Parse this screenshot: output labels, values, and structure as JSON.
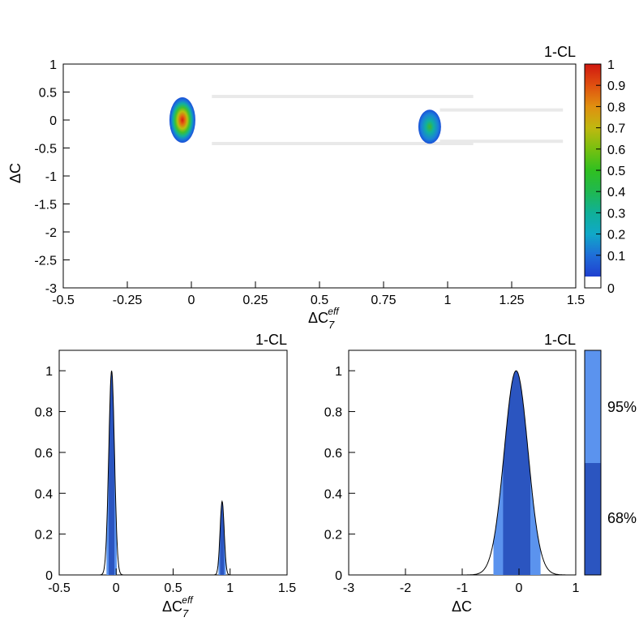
{
  "chart_data": [
    {
      "type": "heatmap",
      "title": "1-CL",
      "xlabel": "ΔC7eff",
      "xlabel_base": "ΔC",
      "xlabel_sub": "7",
      "xlabel_sup": "eff",
      "ylabel": "ΔC",
      "xlim": [
        -0.5,
        1.5
      ],
      "ylim": [
        -3,
        1
      ],
      "x_ticks": [
        "-0.5",
        "-0.25",
        "0",
        "0.25",
        "0.5",
        "0.75",
        "1",
        "1.25",
        "1.5"
      ],
      "y_ticks": [
        "1",
        "0.5",
        "0",
        "-0.5",
        "-1",
        "-1.5",
        "-2",
        "-2.5",
        "-3"
      ],
      "colorbar": {
        "range": [
          0,
          1
        ],
        "ticks": [
          "1",
          "0.9",
          "0.8",
          "0.7",
          "0.6",
          "0.5",
          "0.4",
          "0.3",
          "0.2",
          "0.1",
          "0"
        ]
      },
      "peaks": [
        {
          "x": -0.035,
          "y": 0.0,
          "max": 1.0
        },
        {
          "x": 0.93,
          "y": -0.12,
          "max": 0.36
        }
      ]
    },
    {
      "type": "area",
      "title": "1-CL",
      "xlabel": "ΔC7eff",
      "xlabel_base": "ΔC",
      "xlabel_sub": "7",
      "xlabel_sup": "eff",
      "xlim": [
        -0.5,
        1.5
      ],
      "ylim": [
        0,
        1.1
      ],
      "x_ticks": [
        "-0.5",
        "0",
        "0.5",
        "1",
        "1.5"
      ],
      "y_ticks": [
        "1",
        "0.8",
        "0.6",
        "0.4",
        "0.2",
        "0"
      ],
      "peaks": [
        {
          "center": -0.04,
          "height": 1.0,
          "width": 0.025
        },
        {
          "center": 0.93,
          "height": 0.36,
          "width": 0.018
        }
      ]
    },
    {
      "type": "area",
      "title": "1-CL",
      "xlabel": "ΔC",
      "xlim": [
        -3,
        1
      ],
      "ylim": [
        0,
        1.1
      ],
      "x_ticks": [
        "-3",
        "-2",
        "-1",
        "0",
        "1"
      ],
      "y_ticks": [
        "1",
        "0.8",
        "0.6",
        "0.4",
        "0.2",
        "0"
      ],
      "peaks": [
        {
          "center": -0.05,
          "height": 1.0,
          "width": 0.21
        }
      ],
      "interval_68": [
        -0.28,
        0.2
      ],
      "interval_95": [
        -0.45,
        0.38
      ]
    }
  ],
  "legend": {
    "items": [
      {
        "label": "95%",
        "color": "#5b93ee"
      },
      {
        "label": "68%",
        "color": "#2b55c0"
      }
    ]
  }
}
